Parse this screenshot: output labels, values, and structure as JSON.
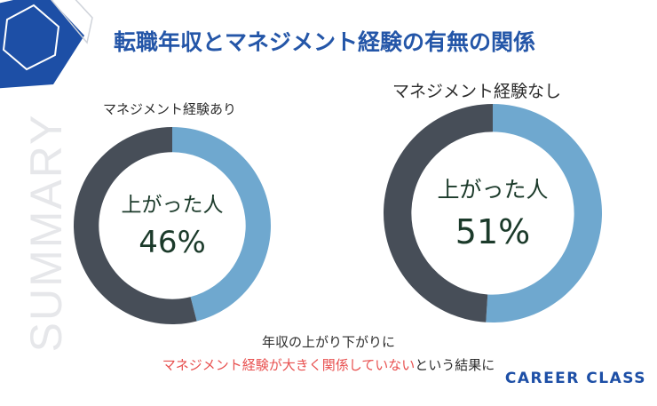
{
  "title": "転職年収とマネジメント経験の有無の関係",
  "side_word": "SUMMARY",
  "brand": "CAREER CLASS",
  "caption": {
    "line1": "年収の上がり下がりに",
    "line2_highlight": "マネジメント経験が大きく関係していない",
    "line2_rest": "という結果に"
  },
  "colors": {
    "primary_blue": "#2456a8",
    "highlight_red": "#e8504f",
    "up_slice": "#6fa8cf",
    "other_slice": "#474e58"
  },
  "chart_data": [
    {
      "type": "pie",
      "title": "マネジメント経験あり",
      "center_label": "上がった人",
      "center_value": "46%",
      "slices": [
        {
          "label": "上がった人",
          "value": 46,
          "color": "#6fa8cf"
        },
        {
          "label": "",
          "value": 54,
          "color": "#474e58"
        }
      ]
    },
    {
      "type": "pie",
      "title": "マネジメント経験なし",
      "center_label": "上がった人",
      "center_value": "51%",
      "slices": [
        {
          "label": "上がった人",
          "value": 51,
          "color": "#6fa8cf"
        },
        {
          "label": "",
          "value": 49,
          "color": "#474e58"
        }
      ]
    }
  ]
}
